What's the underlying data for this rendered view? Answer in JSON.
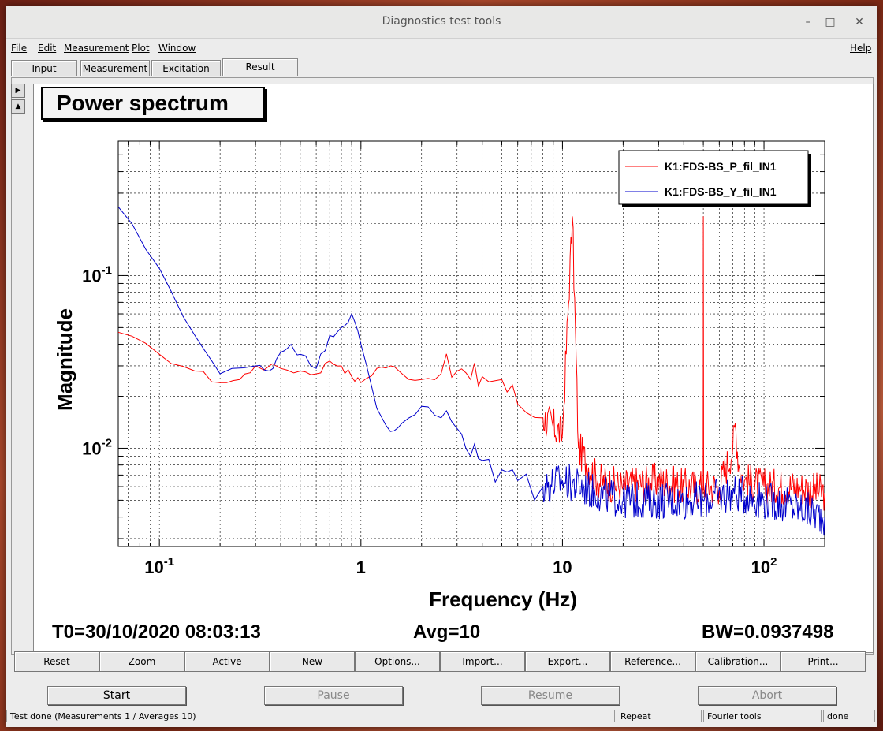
{
  "window": {
    "title": "Diagnostics test tools"
  },
  "menu": {
    "file": "File",
    "edit": "Edit",
    "measurement": "Measurement",
    "plot": "Plot",
    "window": "Window",
    "help": "Help"
  },
  "tabs": [
    "Input",
    "Measurement",
    "Excitation",
    "Result"
  ],
  "plot": {
    "title": "Power spectrum",
    "t0": "T0=30/10/2020 08:03:13",
    "avg": "Avg=10",
    "bw": "BW=0.0937498"
  },
  "buttons": [
    "Reset",
    "Zoom",
    "Active",
    "New",
    "Options...",
    "Import...",
    "Export...",
    "Reference...",
    "Calibration...",
    "Print..."
  ],
  "controls": {
    "start": "Start",
    "pause": "Pause",
    "resume": "Resume",
    "abort": "Abort"
  },
  "status": {
    "message": "Test done (Measurements 1 / Averages 10)",
    "repeat": "Repeat",
    "tool": "Fourier tools",
    "state": "done"
  },
  "chart_data": {
    "type": "line",
    "xlabel": "Frequency (Hz)",
    "ylabel": "Magnitude",
    "xscale": "log",
    "yscale": "log",
    "xlim": [
      0.0625,
      200
    ],
    "ylim": [
      0.0027,
      0.6
    ],
    "x_tick_labels": [
      "10^-1",
      "1",
      "10",
      "10^2"
    ],
    "y_tick_labels": [
      "10^-2",
      "10^-1"
    ],
    "grid": true,
    "legend_position": "top-right",
    "series": [
      {
        "name": "K1:FDS-BS_P_fil_IN1",
        "color": "#ff0000",
        "points": [
          [
            0.0625,
            0.047
          ],
          [
            0.1,
            0.035
          ],
          [
            0.15,
            0.028
          ],
          [
            0.2,
            0.024
          ],
          [
            0.25,
            0.025
          ],
          [
            0.3,
            0.03
          ],
          [
            0.4,
            0.029
          ],
          [
            0.5,
            0.028
          ],
          [
            0.6,
            0.027
          ],
          [
            0.7,
            0.032
          ],
          [
            0.8,
            0.03
          ],
          [
            0.9,
            0.026
          ],
          [
            1.0,
            0.024
          ],
          [
            1.2,
            0.029
          ],
          [
            1.4,
            0.03
          ],
          [
            1.6,
            0.027
          ],
          [
            2.0,
            0.025
          ],
          [
            2.5,
            0.027
          ],
          [
            3.0,
            0.028
          ],
          [
            3.5,
            0.025
          ],
          [
            4.0,
            0.026
          ],
          [
            5.0,
            0.025
          ],
          [
            6.0,
            0.018
          ],
          [
            8.0,
            0.015
          ],
          [
            10.0,
            0.012
          ],
          [
            11.2,
            0.22
          ],
          [
            12.0,
            0.01
          ],
          [
            15.0,
            0.0065
          ],
          [
            20.0,
            0.006
          ],
          [
            30.0,
            0.0065
          ],
          [
            40.0,
            0.006
          ],
          [
            49.9,
            0.006
          ],
          [
            50.0,
            0.22
          ],
          [
            50.2,
            0.006
          ],
          [
            60.0,
            0.006
          ],
          [
            70.0,
            0.01
          ],
          [
            72.0,
            0.014
          ],
          [
            75.0,
            0.008
          ],
          [
            80.0,
            0.0065
          ],
          [
            100.0,
            0.006
          ],
          [
            150.0,
            0.006
          ],
          [
            200.0,
            0.0055
          ]
        ]
      },
      {
        "name": "K1:FDS-BS_Y_fil_IN1",
        "color": "#0000cc",
        "points": [
          [
            0.0625,
            0.25
          ],
          [
            0.1,
            0.11
          ],
          [
            0.15,
            0.045
          ],
          [
            0.2,
            0.027
          ],
          [
            0.3,
            0.03
          ],
          [
            0.35,
            0.028
          ],
          [
            0.4,
            0.036
          ],
          [
            0.45,
            0.04
          ],
          [
            0.5,
            0.035
          ],
          [
            0.6,
            0.029
          ],
          [
            0.7,
            0.045
          ],
          [
            0.8,
            0.05
          ],
          [
            0.9,
            0.06
          ],
          [
            1.0,
            0.04
          ],
          [
            1.2,
            0.017
          ],
          [
            1.4,
            0.0125
          ],
          [
            1.6,
            0.014
          ],
          [
            2.0,
            0.0175
          ],
          [
            2.5,
            0.015
          ],
          [
            3.0,
            0.013
          ],
          [
            3.5,
            0.009
          ],
          [
            4.0,
            0.0085
          ],
          [
            5.0,
            0.0075
          ],
          [
            6.0,
            0.0065
          ],
          [
            8.0,
            0.006
          ],
          [
            10.0,
            0.0065
          ],
          [
            15.0,
            0.0055
          ],
          [
            20.0,
            0.005
          ],
          [
            30.0,
            0.005
          ],
          [
            50.0,
            0.005
          ],
          [
            70.0,
            0.0055
          ],
          [
            100.0,
            0.005
          ],
          [
            150.0,
            0.0045
          ],
          [
            200.0,
            0.004
          ]
        ]
      }
    ]
  }
}
